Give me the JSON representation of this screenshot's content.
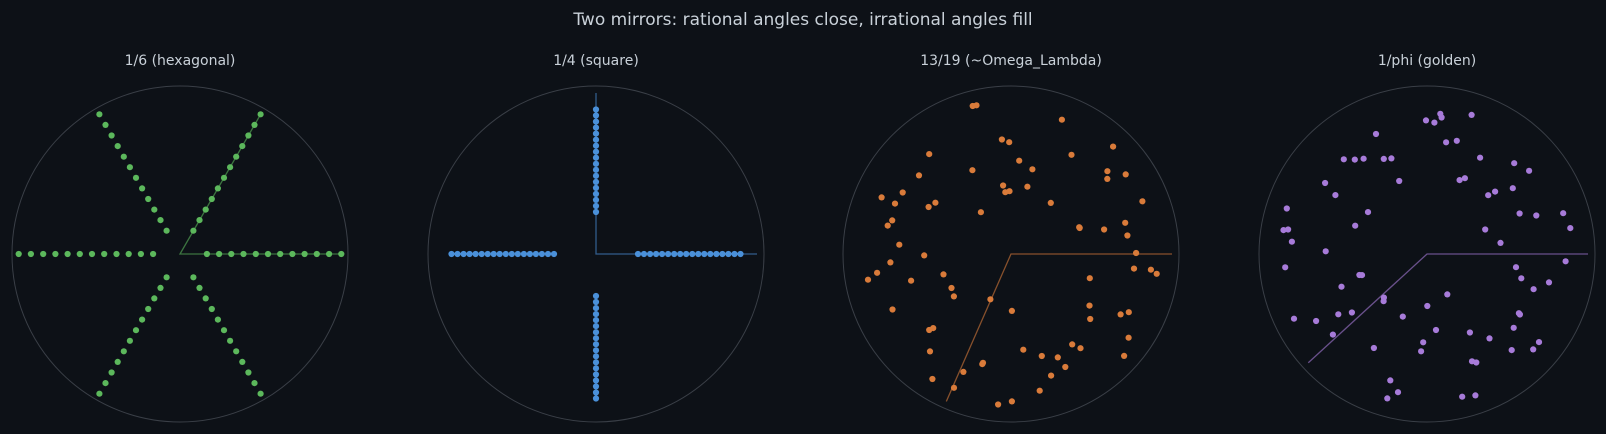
{
  "chart_data": {
    "title": "Two mirrors: rational angles close, irrational angles fill",
    "panels": [
      {
        "type": "scatter",
        "title": "1/6 (hexagonal)",
        "angle_fraction": "1/6",
        "color": "#5cb85c",
        "mode": "rays",
        "points_per_ray": 12,
        "radius_range": [
          0.16,
          0.96
        ],
        "grid": false
      },
      {
        "type": "scatter",
        "title": "1/4 (square)",
        "angle_fraction": "1/4",
        "color": "#4a90d9",
        "mode": "rays",
        "points_per_ray": 18,
        "radius_range": [
          0.25,
          0.86
        ],
        "grid": false
      },
      {
        "type": "scatter",
        "title": "13/19 (~Omega_Lambda)",
        "angle_fraction": "13/19",
        "color": "#d97b3a",
        "mode": "fill",
        "n_points": 75,
        "grid": false
      },
      {
        "type": "scatter",
        "title": "1/phi (golden)",
        "angle_fraction": "1/phi",
        "color": "#a77bd9",
        "mode": "fill",
        "n_points": 75,
        "grid": false
      }
    ]
  }
}
